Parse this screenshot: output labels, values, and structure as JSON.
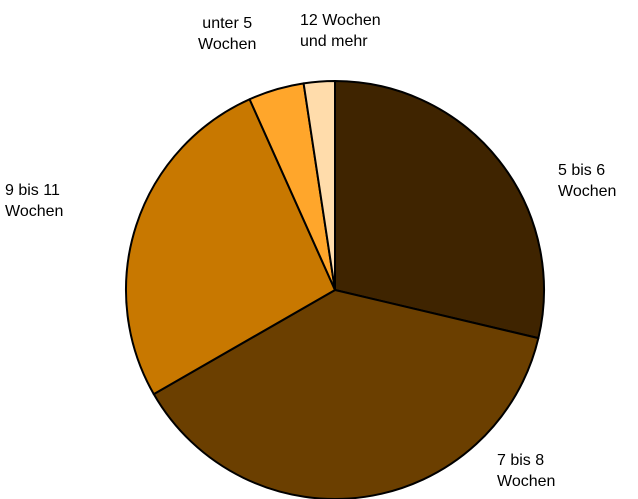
{
  "chart_data": {
    "type": "pie",
    "categories": [
      "5 bis 6\nWochen",
      "7 bis 8\nWochen",
      "9 bis 11\nWochen",
      "unter 5\nWochen",
      "12 Wochen\nund mehr"
    ],
    "values": [
      28.7,
      38,
      26.6,
      4.3,
      2.4
    ],
    "colors": [
      "#3f2400",
      "#6b3f00",
      "#c87800",
      "#ffa62b",
      "#ffdcab"
    ]
  }
}
